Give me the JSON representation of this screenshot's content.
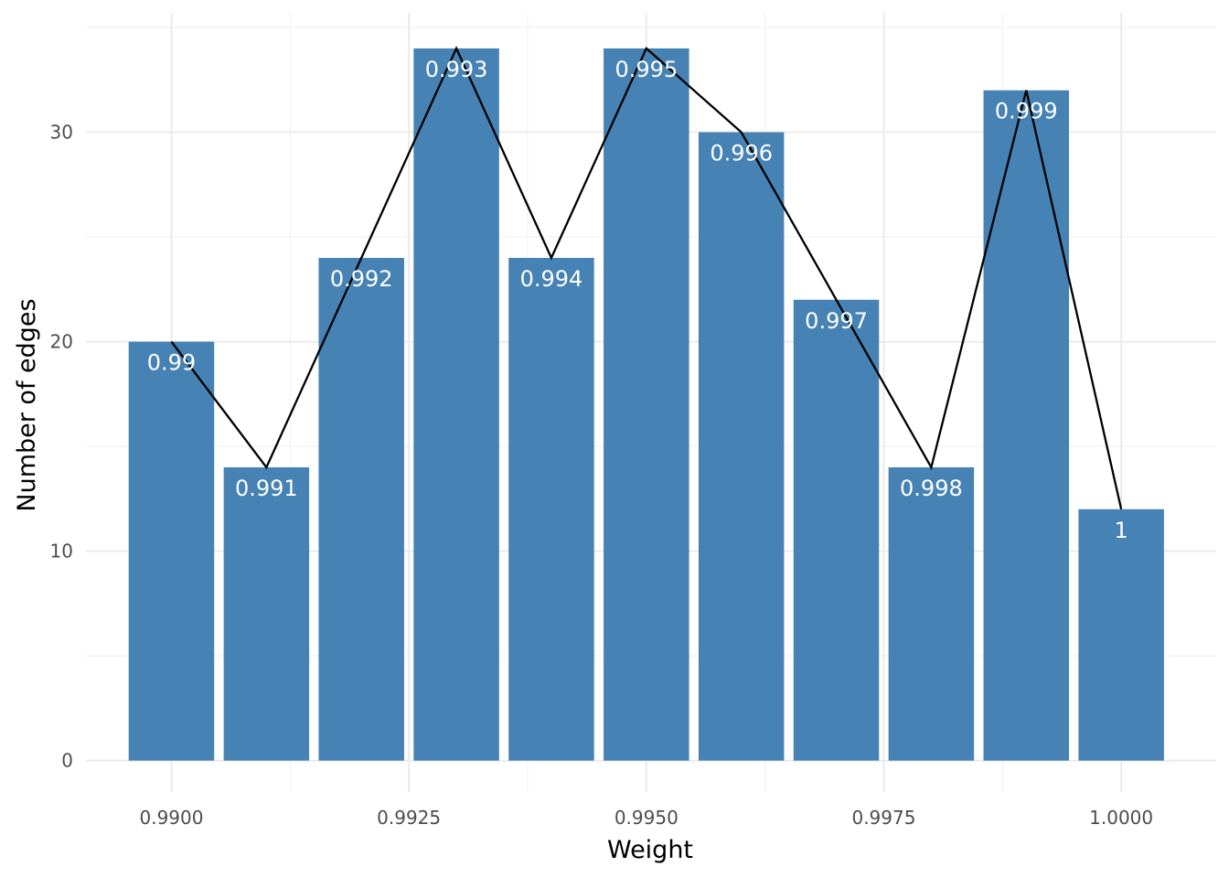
{
  "chart_data": {
    "type": "bar",
    "xlabel": "Weight",
    "ylabel": "Number of edges",
    "x_ticks": [
      "0.9900",
      "0.9925",
      "0.9950",
      "0.9975",
      "1.0000"
    ],
    "x_tick_values": [
      0.99,
      0.9925,
      0.995,
      0.9975,
      1.0
    ],
    "y_ticks": [
      "0",
      "10",
      "20",
      "30"
    ],
    "y_tick_values": [
      0,
      10,
      20,
      30
    ],
    "xlim": [
      0.9891,
      1.001
    ],
    "ylim": [
      -1.5,
      35.7
    ],
    "grid": true,
    "bar_color": "#4682b4",
    "line_color": "#000000",
    "series": [
      {
        "x": [
          0.99,
          0.991,
          0.992,
          0.993,
          0.994,
          0.995,
          0.996,
          0.997,
          0.998,
          0.999,
          1.0
        ],
        "values": [
          20,
          14,
          24,
          34,
          24,
          34,
          30,
          22,
          14,
          32,
          12
        ],
        "labels": [
          "0.99",
          "0.991",
          "0.992",
          "0.993",
          "0.994",
          "0.995",
          "0.996",
          "0.997",
          "0.998",
          "0.999",
          "1"
        ]
      }
    ]
  }
}
